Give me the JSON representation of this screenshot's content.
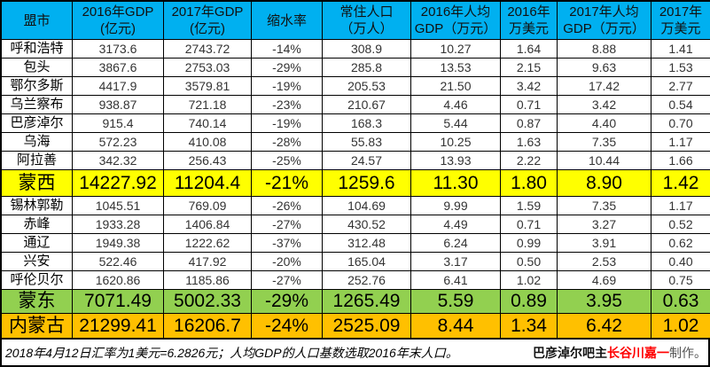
{
  "headers": [
    "盟市",
    "2016年GDP\n(亿元)",
    "2017年GDP\n(亿元)",
    "缩水率",
    "常住人口\n（万人）",
    "2016年人均\nGDP（万元）",
    "2016年\n万美元",
    "2017年人均\nGDP（万元）",
    "2017年\n万美元"
  ],
  "west_rows": [
    [
      "呼和浩特",
      "3173.6",
      "2743.72",
      "-14%",
      "308.9",
      "10.27",
      "1.64",
      "8.88",
      "1.41"
    ],
    [
      "包头",
      "3867.6",
      "2753.03",
      "-29%",
      "285.8",
      "13.53",
      "2.15",
      "9.63",
      "1.53"
    ],
    [
      "鄂尔多斯",
      "4417.9",
      "3579.81",
      "-19%",
      "205.53",
      "21.50",
      "3.42",
      "17.42",
      "2.77"
    ],
    [
      "乌兰察布",
      "938.87",
      "721.18",
      "-23%",
      "210.67",
      "4.46",
      "0.71",
      "3.42",
      "0.54"
    ],
    [
      "巴彦淖尔",
      "915.4",
      "740.14",
      "-19%",
      "168.3",
      "5.44",
      "0.87",
      "4.40",
      "0.70"
    ],
    [
      "乌海",
      "572.23",
      "410.08",
      "-28%",
      "55.83",
      "10.25",
      "1.63",
      "7.35",
      "1.17"
    ],
    [
      "阿拉善",
      "342.32",
      "256.43",
      "-25%",
      "24.57",
      "13.93",
      "2.22",
      "10.44",
      "1.66"
    ]
  ],
  "west_total": [
    "蒙西",
    "14227.92",
    "11204.4",
    "-21%",
    "1259.6",
    "11.30",
    "1.80",
    "8.90",
    "1.42"
  ],
  "east_rows": [
    [
      "锡林郭勒",
      "1045.51",
      "769.09",
      "-26%",
      "104.69",
      "9.99",
      "1.59",
      "7.35",
      "1.17"
    ],
    [
      "赤峰",
      "1933.28",
      "1406.84",
      "-27%",
      "430.52",
      "4.49",
      "0.71",
      "3.27",
      "0.52"
    ],
    [
      "通辽",
      "1949.38",
      "1222.62",
      "-37%",
      "312.48",
      "6.24",
      "0.99",
      "3.91",
      "0.62"
    ],
    [
      "兴安",
      "522.46",
      "417.92",
      "-20%",
      "165.04",
      "3.17",
      "0.50",
      "2.53",
      "0.40"
    ],
    [
      "呼伦贝尔",
      "1620.86",
      "1185.86",
      "-27%",
      "252.76",
      "6.41",
      "1.02",
      "4.69",
      "0.75"
    ]
  ],
  "east_total": [
    "蒙东",
    "7071.49",
    "5002.33",
    "-29%",
    "1265.49",
    "5.59",
    "0.89",
    "3.95",
    "0.63"
  ],
  "grand_total": [
    "内蒙古",
    "21299.41",
    "16206.7",
    "-24%",
    "2525.09",
    "8.44",
    "1.34",
    "6.42",
    "1.02"
  ],
  "footer": {
    "note": "2018年4月12日汇率为1美元=6.2826元；人均GDP的人口基数选取2016年末人口。",
    "credit_prefix": "巴彦淖尔吧主",
    "credit_name": "长谷川嘉一",
    "credit_suffix": "制作。"
  },
  "colors": {
    "header": "#00b0f0",
    "west_total": "#ffff00",
    "east_total": "#92d050",
    "grand_total": "#ffc000",
    "credit_name": "#ff0000"
  }
}
